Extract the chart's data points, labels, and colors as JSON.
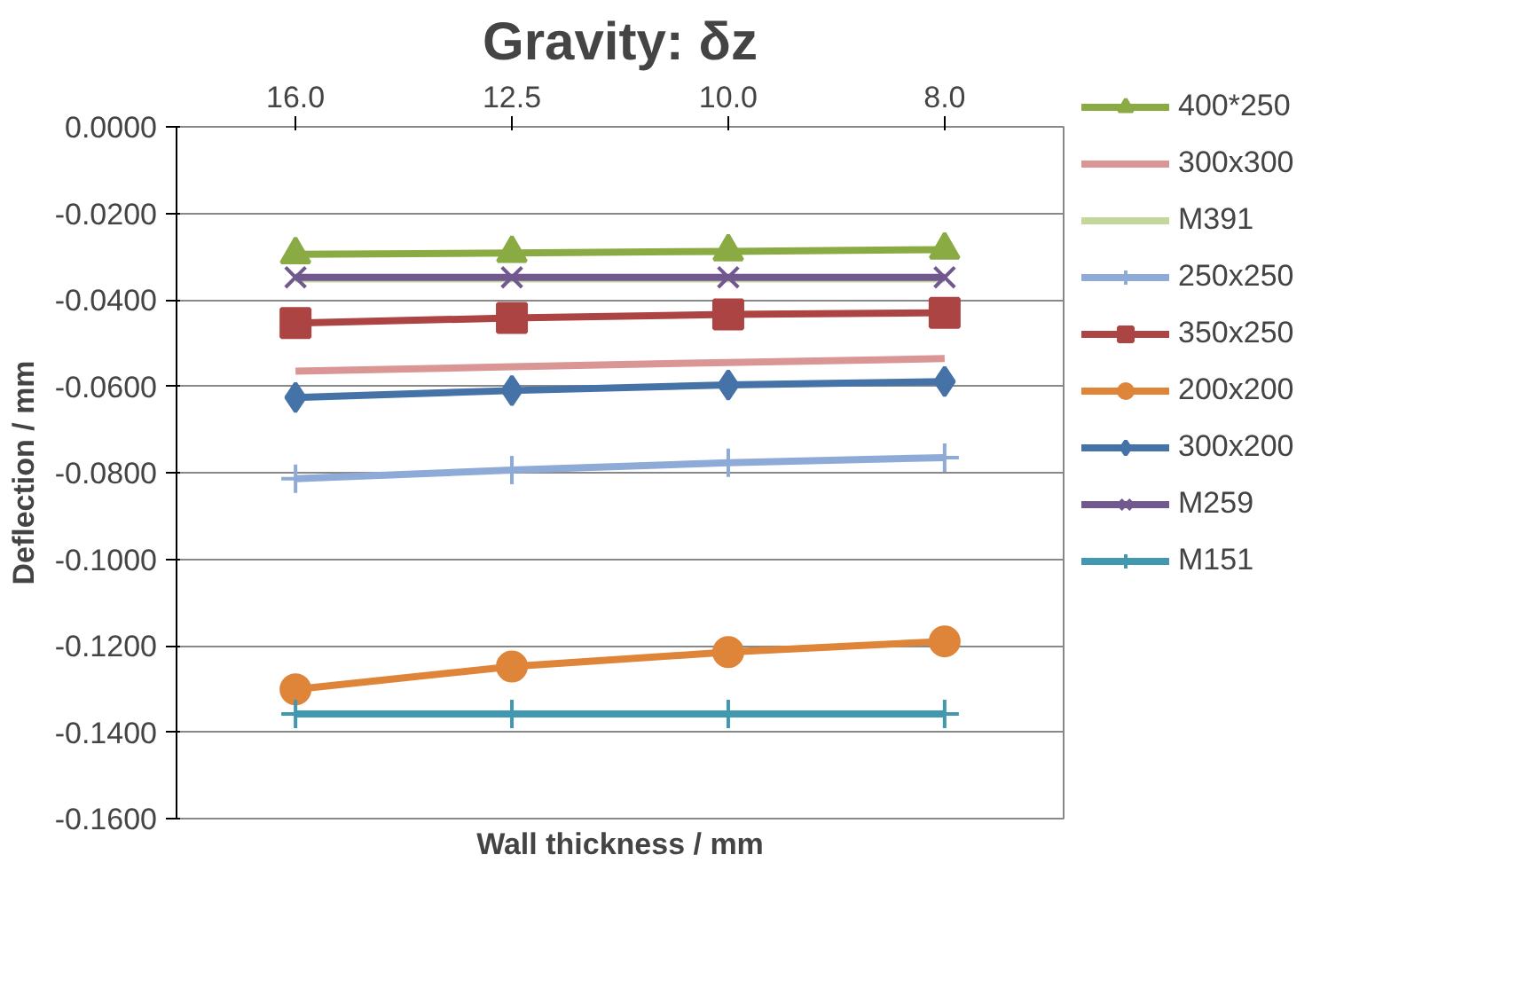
{
  "chart_data": {
    "type": "line",
    "title": "Gravity: δz",
    "xlabel": "Wall thickness / mm",
    "ylabel": "Deflection / mm",
    "categories": [
      "16.0",
      "12.5",
      "10.0",
      "8.0"
    ],
    "ylim": [
      -0.16,
      0
    ],
    "yticks": [
      {
        "value": 0,
        "label": "0.0000"
      },
      {
        "value": -0.02,
        "label": "-0.0200"
      },
      {
        "value": -0.04,
        "label": "-0.0400"
      },
      {
        "value": -0.06,
        "label": "-0.0600"
      },
      {
        "value": -0.08,
        "label": "-0.0800"
      },
      {
        "value": -0.1,
        "label": "-0.1000"
      },
      {
        "value": -0.12,
        "label": "-0.1200"
      },
      {
        "value": -0.14,
        "label": "-0.1400"
      },
      {
        "value": -0.16,
        "label": "-0.1600"
      }
    ],
    "grid": "y",
    "legend": "right",
    "series": [
      {
        "name": "400*250",
        "color": "#8aab44",
        "marker": "triangle",
        "values": [
          -0.0295,
          -0.0292,
          -0.0288,
          -0.0284
        ]
      },
      {
        "name": "300x300",
        "color": "#d99694",
        "marker": "none",
        "values": [
          -0.0565,
          -0.0555,
          -0.0545,
          -0.0536
        ]
      },
      {
        "name": "M391",
        "color": "#c3d69b",
        "marker": "none",
        "values": [
          -0.0352,
          -0.0352,
          -0.0352,
          -0.0352
        ]
      },
      {
        "name": "250x250",
        "color": "#8eaad6",
        "marker": "cross",
        "values": [
          -0.0814,
          -0.0794,
          -0.0777,
          -0.0765
        ]
      },
      {
        "name": "350x250",
        "color": "#ab4442",
        "marker": "square",
        "values": [
          -0.0454,
          -0.0442,
          -0.0434,
          -0.043
        ]
      },
      {
        "name": "200x200",
        "color": "#de8539",
        "marker": "circle",
        "values": [
          -0.1301,
          -0.1248,
          -0.1215,
          -0.119
        ]
      },
      {
        "name": "300x200",
        "color": "#4572a7",
        "marker": "diamond",
        "values": [
          -0.0626,
          -0.061,
          -0.0597,
          -0.0589
        ]
      },
      {
        "name": "M259",
        "color": "#71588f",
        "marker": "x",
        "values": [
          -0.0348,
          -0.0348,
          -0.0348,
          -0.0348
        ]
      },
      {
        "name": "M151",
        "color": "#4198af",
        "marker": "cross",
        "values": [
          -0.1358,
          -0.1358,
          -0.1358,
          -0.1358
        ]
      }
    ]
  }
}
